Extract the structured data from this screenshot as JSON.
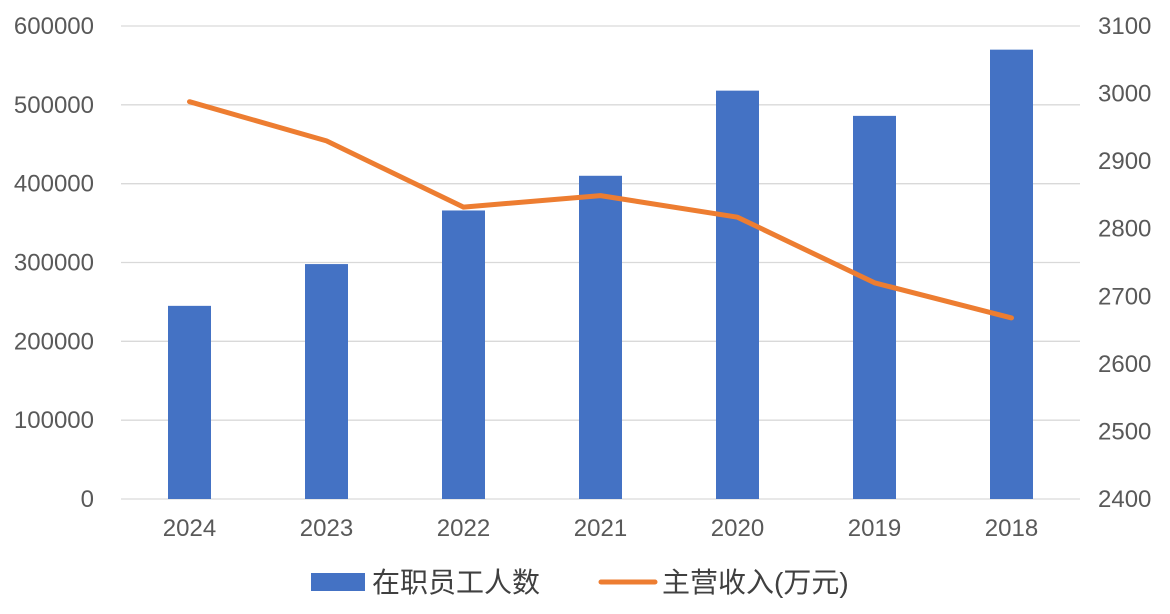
{
  "chart_data": {
    "type": "bar",
    "categories": [
      "2024",
      "2023",
      "2022",
      "2021",
      "2020",
      "2019",
      "2018"
    ],
    "series": [
      {
        "name": "在职员工人数",
        "type": "bar",
        "axis": "left",
        "color": "#4472C4",
        "values": [
          245000,
          298000,
          366000,
          410000,
          518000,
          486000,
          570000
        ]
      },
      {
        "name": "主营收入(万元)",
        "type": "line",
        "axis": "right",
        "color": "#ED7D31",
        "values": [
          2988,
          2930,
          2832,
          2849,
          2817,
          2720,
          2668
        ]
      }
    ],
    "y_left": {
      "min": 0,
      "max": 600000,
      "ticks": [
        "0",
        "100000",
        "200000",
        "300000",
        "400000",
        "500000",
        "600000"
      ]
    },
    "y_right": {
      "min": 2400,
      "max": 3100,
      "ticks": [
        "2400",
        "2500",
        "2600",
        "2700",
        "2800",
        "2900",
        "3000",
        "3100"
      ]
    },
    "grid": true,
    "legend_position": "bottom"
  }
}
